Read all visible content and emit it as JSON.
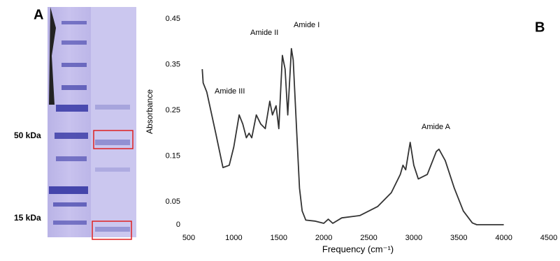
{
  "gel": {
    "label": "A",
    "markers": [
      "50 kDa",
      "15 kDa"
    ]
  },
  "chart_data": {
    "type": "line",
    "label": "B",
    "x_label": "Frequency (cm⁻¹)",
    "y_label": "Absorbance",
    "annotations": [
      "Amide III",
      "Amide II",
      "Amide I",
      "Amide A"
    ],
    "x": [
      650,
      660,
      700,
      800,
      880,
      950,
      1000,
      1060,
      1100,
      1140,
      1170,
      1200,
      1250,
      1300,
      1350,
      1400,
      1430,
      1470,
      1500,
      1540,
      1570,
      1600,
      1640,
      1660,
      1700,
      1730,
      1760,
      1800,
      1900,
      2000,
      2050,
      2100,
      2200,
      2400,
      2600,
      2750,
      2850,
      2880,
      2910,
      2960,
      3000,
      3050,
      3150,
      3250,
      3280,
      3350,
      3450,
      3550,
      3650,
      3700,
      4000
    ],
    "series": [
      {
        "color": "#333333",
        "values": [
          0.34,
          0.31,
          0.29,
          0.2,
          0.125,
          0.13,
          0.17,
          0.24,
          0.22,
          0.19,
          0.2,
          0.19,
          0.24,
          0.22,
          0.21,
          0.27,
          0.24,
          0.26,
          0.21,
          0.37,
          0.34,
          0.24,
          0.385,
          0.36,
          0.2,
          0.08,
          0.03,
          0.01,
          0.008,
          0.003,
          0.012,
          0.003,
          0.015,
          0.02,
          0.04,
          0.07,
          0.11,
          0.13,
          0.12,
          0.18,
          0.13,
          0.1,
          0.11,
          0.16,
          0.165,
          0.14,
          0.08,
          0.03,
          0.004,
          0,
          0
        ]
      }
    ],
    "xlim": [
      500,
      4500
    ],
    "ylim": [
      0,
      0.45
    ],
    "xticks": [
      500,
      1000,
      1500,
      2000,
      2500,
      3000,
      3500,
      4000,
      4500
    ],
    "yticks": [
      0,
      0.05,
      0.15,
      0.25,
      0.35,
      0.45
    ]
  }
}
